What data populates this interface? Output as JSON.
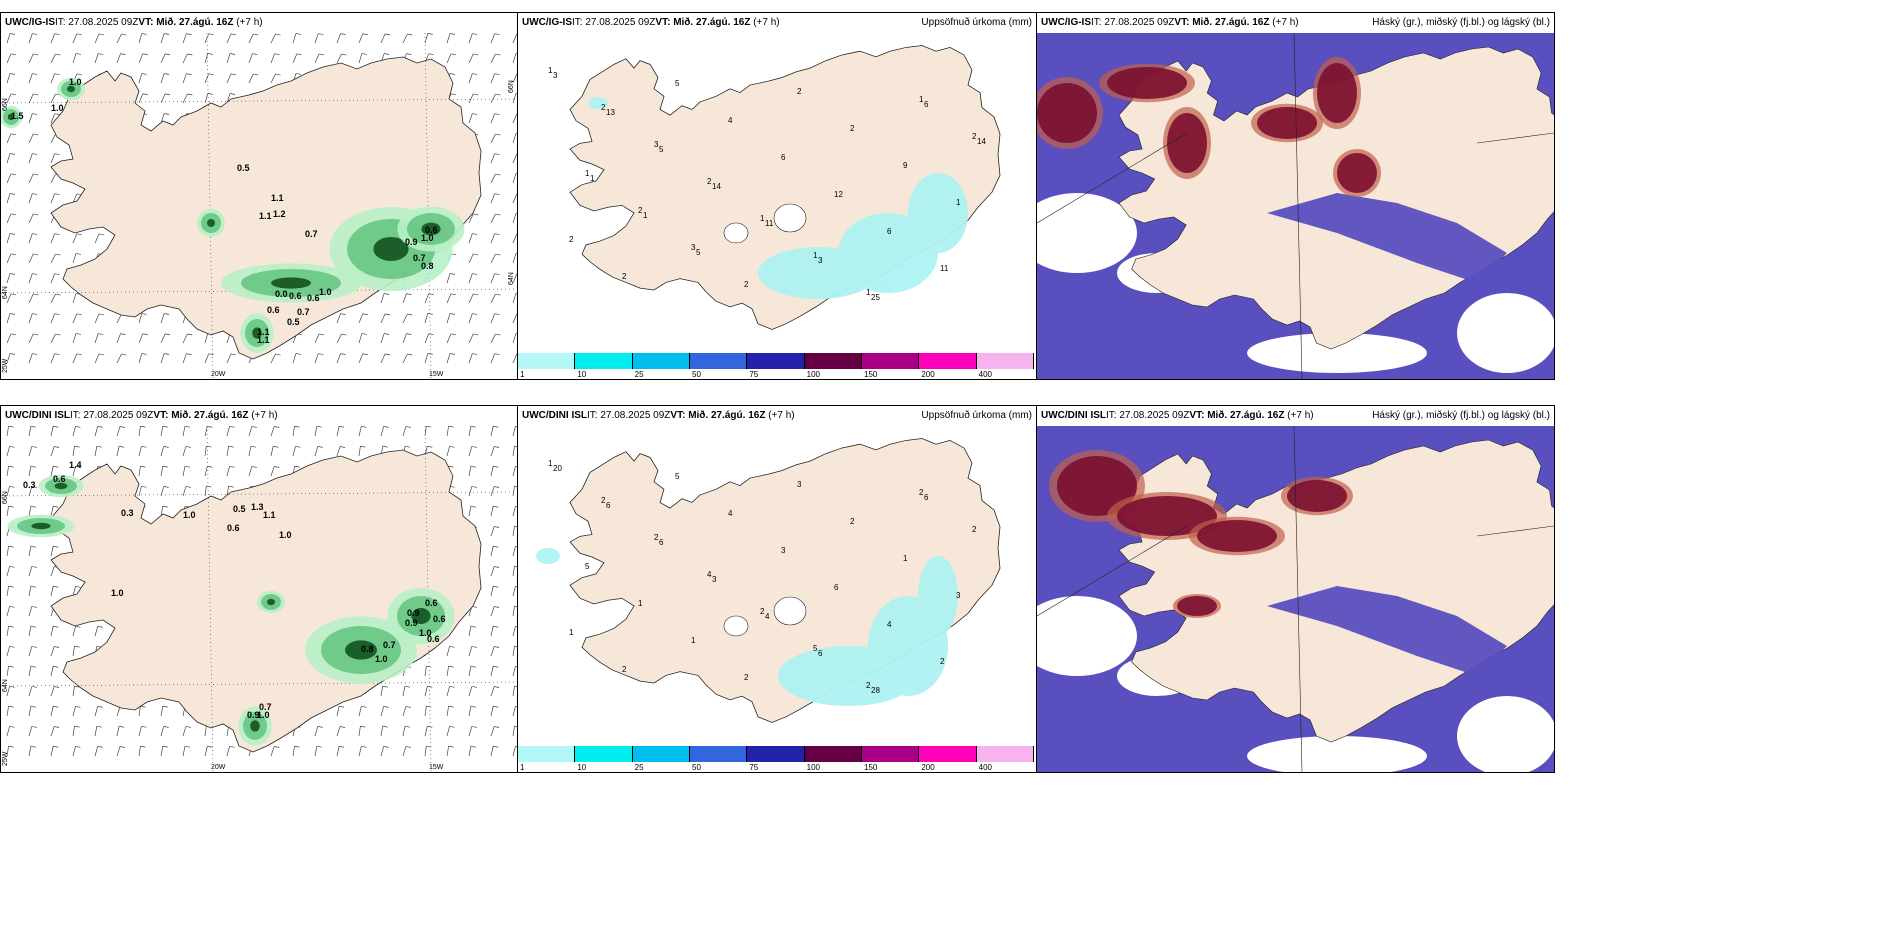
{
  "panels": [
    {
      "model": "UWC/IG-IS",
      "it": "IT: 27.08.2025 09Z",
      "vt_label": "VT:",
      "vt": "Mið. 27.ágú. 16Z",
      "lead": "(+7 h)",
      "right": "",
      "lon_labels": [
        "20W",
        "15W"
      ],
      "lat_labels": [
        "66N",
        "64N",
        "25W",
        "66N",
        "64N"
      ],
      "values": [
        "1.0",
        "1.0",
        "1.5",
        "0.5",
        "1.1",
        "1.1",
        "1.2",
        "0.7",
        "0.9",
        "0.6",
        "1.0",
        "0.7",
        "0.8",
        "0.0",
        "0.6",
        "0.6",
        "1.0",
        "0.6",
        "0.7",
        "0.5",
        "1.1",
        "1.1"
      ]
    },
    {
      "model": "UWC/IG-IS",
      "it": "IT: 27.08.2025 09Z",
      "vt_label": "VT:",
      "vt": "Mið. 27.ágú. 16Z",
      "lead": "(+7 h)",
      "right": "Uppsöfnuð úrkoma (mm)",
      "values": [
        "1",
        "2",
        "3",
        "2",
        "1",
        "1",
        "1",
        "1",
        "2",
        "1",
        "2",
        "3",
        "2",
        "2",
        "2",
        "9",
        "1",
        "2",
        "2",
        "5",
        "4",
        "6",
        "12",
        "6",
        "11",
        "3",
        "13",
        "5",
        "14",
        "11",
        "3",
        "25",
        "6",
        "14",
        "1",
        "1",
        "5"
      ]
    },
    {
      "model": "UWC/IG-IS",
      "it": "IT: 27.08.2025 09Z",
      "vt_label": "VT:",
      "vt": "Mið. 27.ágú. 16Z",
      "lead": "(+7 h)",
      "right": "Háský (gr.), miðský (fj.bl.) og lágský (bl.)"
    },
    {
      "model": "UWC/DINI ISL",
      "it": "IT: 27.08.2025 09Z",
      "vt_label": "VT:",
      "vt": "Mið. 27.ágú. 16Z",
      "lead": "(+7 h)",
      "right": "",
      "lon_labels": [
        "20W",
        "15W"
      ],
      "lat_labels": [
        "66N",
        "64N",
        "25W"
      ],
      "values": [
        "1.4",
        "0.6",
        "0.3",
        "0.3",
        "1.0",
        "0.6",
        "0.5",
        "1.3",
        "1.1",
        "1.0",
        "1.0",
        "0.9",
        "0.6",
        "0.9",
        "0.6",
        "1.0",
        "0.6",
        "0.7",
        "0.8",
        "1.0",
        "0.7",
        "1.0",
        "0.9"
      ]
    },
    {
      "model": "UWC/DINI ISL",
      "it": "IT: 27.08.2025 09Z",
      "vt_label": "VT:",
      "vt": "Mið. 27.ágú. 16Z",
      "lead": "(+7 h)",
      "right": "Uppsöfnuð úrkoma (mm)",
      "values": [
        "1",
        "2",
        "2",
        "4",
        "2",
        "5",
        "2",
        "2",
        "2",
        "5",
        "1",
        "1",
        "2",
        "3",
        "2",
        "1",
        "3",
        "1",
        "2",
        "5",
        "4",
        "3",
        "6",
        "4",
        "2",
        "20",
        "6",
        "6",
        "3",
        "4",
        "6",
        "28",
        "6"
      ]
    },
    {
      "model": "UWC/DINI ISL",
      "it": "IT: 27.08.2025 09Z",
      "vt_label": "VT:",
      "vt": "Mið. 27.ágú. 16Z",
      "lead": "(+7 h)",
      "right": "Háský (gr.), miðský (fj.bl.) og lágský (bl.)"
    }
  ],
  "colorbar": {
    "ticks": [
      "1",
      "10",
      "25",
      "50",
      "75",
      "100",
      "150",
      "200",
      "400"
    ],
    "colors": [
      "#b3f7f7",
      "#00eeee",
      "#00bfee",
      "#3366dd",
      "#2222aa",
      "#660044",
      "#aa0088",
      "#ff00bb",
      "#f7b3ee"
    ]
  },
  "colors": {
    "land": "#f7e7d8",
    "precip_light": "#b8f0c8",
    "precip_mid": "#5cc07a",
    "precip_dark": "#1b5e2a",
    "low_cloud": "#5a4fbf",
    "high_cloud": "#7a1030",
    "mid_cloud": "#c0604a",
    "cyan_precip": "#aef2f2"
  }
}
